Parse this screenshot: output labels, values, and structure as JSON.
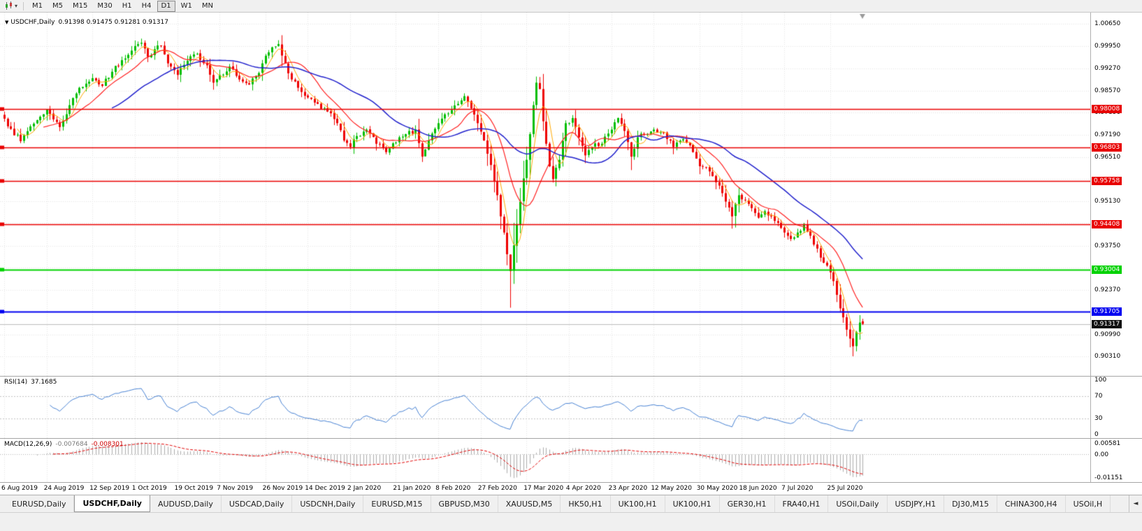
{
  "toolbar": {
    "timeframes": [
      "M1",
      "M5",
      "M15",
      "M30",
      "H1",
      "H4",
      "D1",
      "W1",
      "MN"
    ],
    "active_timeframe": "D1"
  },
  "icons": {
    "chart_caret": "▾",
    "symbol_caret": "▼",
    "tab_scroll_left": "◄"
  },
  "chart_data": {
    "type": "candlestick",
    "symbol": "USDCHF",
    "timeframe": "Daily",
    "title": "USDCHF,Daily",
    "ohlc_text": "0.91398 0.91475 0.91281 0.91317",
    "current_candle": {
      "open": 0.91398,
      "high": 0.91475,
      "low": 0.91281,
      "close": 0.91317
    },
    "current_price": 0.91317,
    "y_domain": [
      0.897,
      1.01
    ],
    "y_ticks": [
      "1.00650",
      "0.99950",
      "0.99270",
      "0.98570",
      "0.97890",
      "0.97190",
      "0.96510",
      "0.95830",
      "0.95130",
      "0.94450",
      "0.93750",
      "0.93070",
      "0.92370",
      "0.91690",
      "0.90990",
      "0.90310"
    ],
    "x_labels": [
      {
        "text": "6 Aug 2019",
        "i": 0
      },
      {
        "text": "24 Aug 2019",
        "i": 13
      },
      {
        "text": "12 Sep 2019",
        "i": 27
      },
      {
        "text": "1 Oct 2019",
        "i": 40
      },
      {
        "text": "19 Oct 2019",
        "i": 53
      },
      {
        "text": "7 Nov 2019",
        "i": 66
      },
      {
        "text": "26 Nov 2019",
        "i": 80
      },
      {
        "text": "14 Dec 2019",
        "i": 93
      },
      {
        "text": "2 Jan 2020",
        "i": 106
      },
      {
        "text": "21 Jan 2020",
        "i": 120
      },
      {
        "text": "8 Feb 2020",
        "i": 133
      },
      {
        "text": "27 Feb 2020",
        "i": 146
      },
      {
        "text": "17 Mar 2020",
        "i": 160
      },
      {
        "text": "4 Apr 2020",
        "i": 173
      },
      {
        "text": "23 Apr 2020",
        "i": 186
      },
      {
        "text": "12 May 2020",
        "i": 199
      },
      {
        "text": "30 May 2020",
        "i": 213
      },
      {
        "text": "18 Jun 2020",
        "i": 226
      },
      {
        "text": "7 Jul 2020",
        "i": 239
      },
      {
        "text": "25 Jul 2020",
        "i": 253
      }
    ],
    "num_candles": 264,
    "close_anchors": [
      [
        0,
        0.977
      ],
      [
        2,
        0.9738
      ],
      [
        5,
        0.97
      ],
      [
        8,
        0.9746
      ],
      [
        11,
        0.9776
      ],
      [
        13,
        0.98
      ],
      [
        15,
        0.9768
      ],
      [
        17,
        0.9744
      ],
      [
        20,
        0.9812
      ],
      [
        23,
        0.9866
      ],
      [
        27,
        0.9896
      ],
      [
        30,
        0.9872
      ],
      [
        33,
        0.9916
      ],
      [
        36,
        0.9952
      ],
      [
        40,
        0.9996
      ],
      [
        42,
        1.0006
      ],
      [
        44,
        0.9962
      ],
      [
        46,
        0.9986
      ],
      [
        48,
        0.9996
      ],
      [
        50,
        0.9942
      ],
      [
        53,
        0.9906
      ],
      [
        56,
        0.995
      ],
      [
        59,
        0.9972
      ],
      [
        62,
        0.9936
      ],
      [
        64,
        0.9882
      ],
      [
        66,
        0.9906
      ],
      [
        69,
        0.9932
      ],
      [
        72,
        0.9892
      ],
      [
        75,
        0.9876
      ],
      [
        78,
        0.9912
      ],
      [
        80,
        0.9966
      ],
      [
        82,
        0.9992
      ],
      [
        84,
        1.0002
      ],
      [
        86,
        0.9942
      ],
      [
        88,
        0.9892
      ],
      [
        90,
        0.9866
      ],
      [
        93,
        0.9836
      ],
      [
        96,
        0.9816
      ],
      [
        99,
        0.9792
      ],
      [
        102,
        0.9756
      ],
      [
        104,
        0.9702
      ],
      [
        106,
        0.9682
      ],
      [
        108,
        0.9716
      ],
      [
        111,
        0.9736
      ],
      [
        114,
        0.9692
      ],
      [
        117,
        0.9666
      ],
      [
        120,
        0.9696
      ],
      [
        123,
        0.9722
      ],
      [
        126,
        0.9736
      ],
      [
        128,
        0.9652
      ],
      [
        130,
        0.9702
      ],
      [
        133,
        0.9756
      ],
      [
        136,
        0.9786
      ],
      [
        139,
        0.9816
      ],
      [
        141,
        0.984
      ],
      [
        143,
        0.9802
      ],
      [
        145,
        0.9756
      ],
      [
        147,
        0.9702
      ],
      [
        149,
        0.9626
      ],
      [
        151,
        0.9532
      ],
      [
        153,
        0.9416
      ],
      [
        155,
        0.9296
      ],
      [
        156,
        0.9376
      ],
      [
        157,
        0.9442
      ],
      [
        158,
        0.9512
      ],
      [
        160,
        0.9642
      ],
      [
        161,
        0.9722
      ],
      [
        162,
        0.9812
      ],
      [
        163,
        0.9882
      ],
      [
        164,
        0.9862
      ],
      [
        165,
        0.9762
      ],
      [
        166,
        0.9692
      ],
      [
        167,
        0.9622
      ],
      [
        168,
        0.9582
      ],
      [
        170,
        0.9642
      ],
      [
        172,
        0.9756
      ],
      [
        174,
        0.9772
      ],
      [
        176,
        0.9712
      ],
      [
        178,
        0.9656
      ],
      [
        180,
        0.9682
      ],
      [
        183,
        0.9692
      ],
      [
        186,
        0.9736
      ],
      [
        188,
        0.9772
      ],
      [
        190,
        0.9732
      ],
      [
        192,
        0.9652
      ],
      [
        194,
        0.9712
      ],
      [
        197,
        0.9722
      ],
      [
        199,
        0.9736
      ],
      [
        202,
        0.9726
      ],
      [
        205,
        0.9682
      ],
      [
        208,
        0.9706
      ],
      [
        211,
        0.9666
      ],
      [
        213,
        0.9622
      ],
      [
        216,
        0.9606
      ],
      [
        219,
        0.9562
      ],
      [
        221,
        0.9512
      ],
      [
        223,
        0.9466
      ],
      [
        225,
        0.9532
      ],
      [
        227,
        0.9516
      ],
      [
        229,
        0.9492
      ],
      [
        231,
        0.9462
      ],
      [
        233,
        0.9482
      ],
      [
        235,
        0.9466
      ],
      [
        237,
        0.9446
      ],
      [
        239,
        0.9416
      ],
      [
        241,
        0.9396
      ],
      [
        243,
        0.9416
      ],
      [
        245,
        0.9442
      ],
      [
        247,
        0.9406
      ],
      [
        249,
        0.9366
      ],
      [
        251,
        0.9322
      ],
      [
        253,
        0.9292
      ],
      [
        255,
        0.9222
      ],
      [
        257,
        0.9152
      ],
      [
        259,
        0.9086
      ],
      [
        260,
        0.9062
      ],
      [
        261,
        0.9106
      ],
      [
        262,
        0.9136
      ],
      [
        263,
        0.91317
      ]
    ],
    "wick_lows": {
      "155": 0.9182,
      "223": 0.9428,
      "260": 0.9031
    },
    "wick_highs": {
      "42": 1.0019,
      "84": 1.0014,
      "163": 0.9901
    },
    "horizontal_lines": [
      {
        "price": 0.98008,
        "label": "0.98008",
        "color": "#E80000",
        "width": 1.5
      },
      {
        "price": 0.96803,
        "label": "0.96803",
        "color": "#E80000",
        "width": 1.5
      },
      {
        "price": 0.95758,
        "label": "0.95758",
        "color": "#E80000",
        "width": 1.5
      },
      {
        "price": 0.94408,
        "label": "0.94408",
        "color": "#E80000",
        "width": 1.5
      },
      {
        "price": 0.93004,
        "label": "0.93004",
        "color": "#00D200",
        "width": 2
      },
      {
        "price": 0.91705,
        "label": "0.91705",
        "color": "#0000F0",
        "width": 2
      }
    ],
    "current_price_tag": {
      "label": "0.91317",
      "bg": "#101010"
    },
    "candle_colors": {
      "up": "#00BE00",
      "down": "#EE0000"
    },
    "moving_averages": [
      {
        "period": 5,
        "color": "#FFA800",
        "width": 1
      },
      {
        "period": 13,
        "color": "#FF2020",
        "width": 1.2
      },
      {
        "period": 34,
        "color": "#2222CC",
        "width": 1.5
      }
    ],
    "rsi": {
      "name": "RSI(14)",
      "value": "37.1685",
      "period": 14,
      "color": "#4680D2",
      "scale": [
        "100",
        "70",
        "30",
        "0"
      ],
      "levels": [
        70,
        30
      ]
    },
    "macd": {
      "name": "MACD(12,26,9)",
      "value_main": "-0.007684",
      "value_signal": "-0.008301",
      "fast": 12,
      "slow": 26,
      "signal": 9,
      "hist_color": "#ACACAC",
      "signal_color": "#E00000",
      "scale_top": "0.00581",
      "scale_zero": "0.00",
      "scale_bottom": "-0.01151"
    }
  },
  "tabs": {
    "active_index": 1,
    "items": [
      "EURUSD,Daily",
      "USDCHF,Daily",
      "AUDUSD,Daily",
      "USDCAD,Daily",
      "USDCNH,Daily",
      "EURUSD,M15",
      "GBPUSD,M30",
      "XAUUSD,M5",
      "HK50,H1",
      "UK100,H1",
      "UK100,H1",
      "GER30,H1",
      "FRA40,H1",
      "USOil,Daily",
      "USDJPY,H1",
      "DJ30,M15",
      "CHINA300,H4",
      "USOil,H"
    ]
  }
}
